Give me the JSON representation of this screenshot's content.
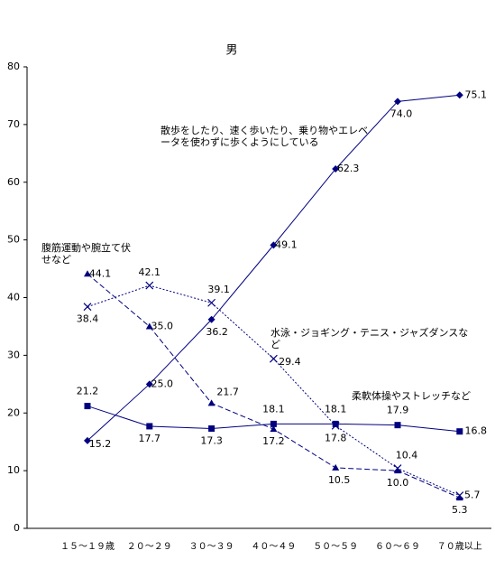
{
  "chart_data": {
    "type": "line",
    "title": "男",
    "categories": [
      "１５～１９歳",
      "２０～２９",
      "３０～３９",
      "４０～４９",
      "５０～５９",
      "６０～６９",
      "７０歳以上"
    ],
    "ylim": [
      0,
      80
    ],
    "yticks": [
      0,
      10,
      20,
      30,
      40,
      50,
      60,
      70,
      80
    ],
    "grid": false,
    "series": [
      {
        "name": "散歩をしたり、速く歩いたり、乗り物やエレベータを使わずに歩くようにしている",
        "color": "#000080",
        "marker": "diamond",
        "dash": "solid",
        "values": [
          15.2,
          25.0,
          36.2,
          49.1,
          62.3,
          74.0,
          75.1
        ],
        "value_labels": [
          "15.2",
          "25.0",
          "36.2",
          "49.1",
          "62.3",
          "74.0",
          "75.1"
        ]
      },
      {
        "name": "腹筋運動や腕立て伏せなど",
        "color": "#000080",
        "marker": "triangle",
        "dash": "dashed",
        "values": [
          44.1,
          35.0,
          21.7,
          17.2,
          10.5,
          10.0,
          5.3
        ],
        "value_labels": [
          "44.1",
          "35.0",
          "21.7",
          "17.2",
          "10.5",
          "10.0",
          "5.3"
        ]
      },
      {
        "name": "水泳・ジョギング・テニス・ジャズダンスなど",
        "color": "#000080",
        "marker": "x",
        "dash": "dotted",
        "values": [
          38.4,
          42.1,
          39.1,
          29.4,
          17.8,
          10.4,
          5.7
        ],
        "value_labels": [
          "38.4",
          "42.1",
          "39.1",
          "29.4",
          "17.8",
          "10.4",
          "5.7"
        ]
      },
      {
        "name": "柔軟体操やストレッチなど",
        "color": "#000080",
        "marker": "square",
        "dash": "solid",
        "values": [
          21.2,
          17.7,
          17.3,
          18.1,
          18.1,
          17.9,
          16.8
        ],
        "value_labels": [
          "21.2",
          "17.7",
          "17.3",
          "18.1",
          "18.1",
          "17.9",
          "16.8"
        ]
      }
    ]
  }
}
